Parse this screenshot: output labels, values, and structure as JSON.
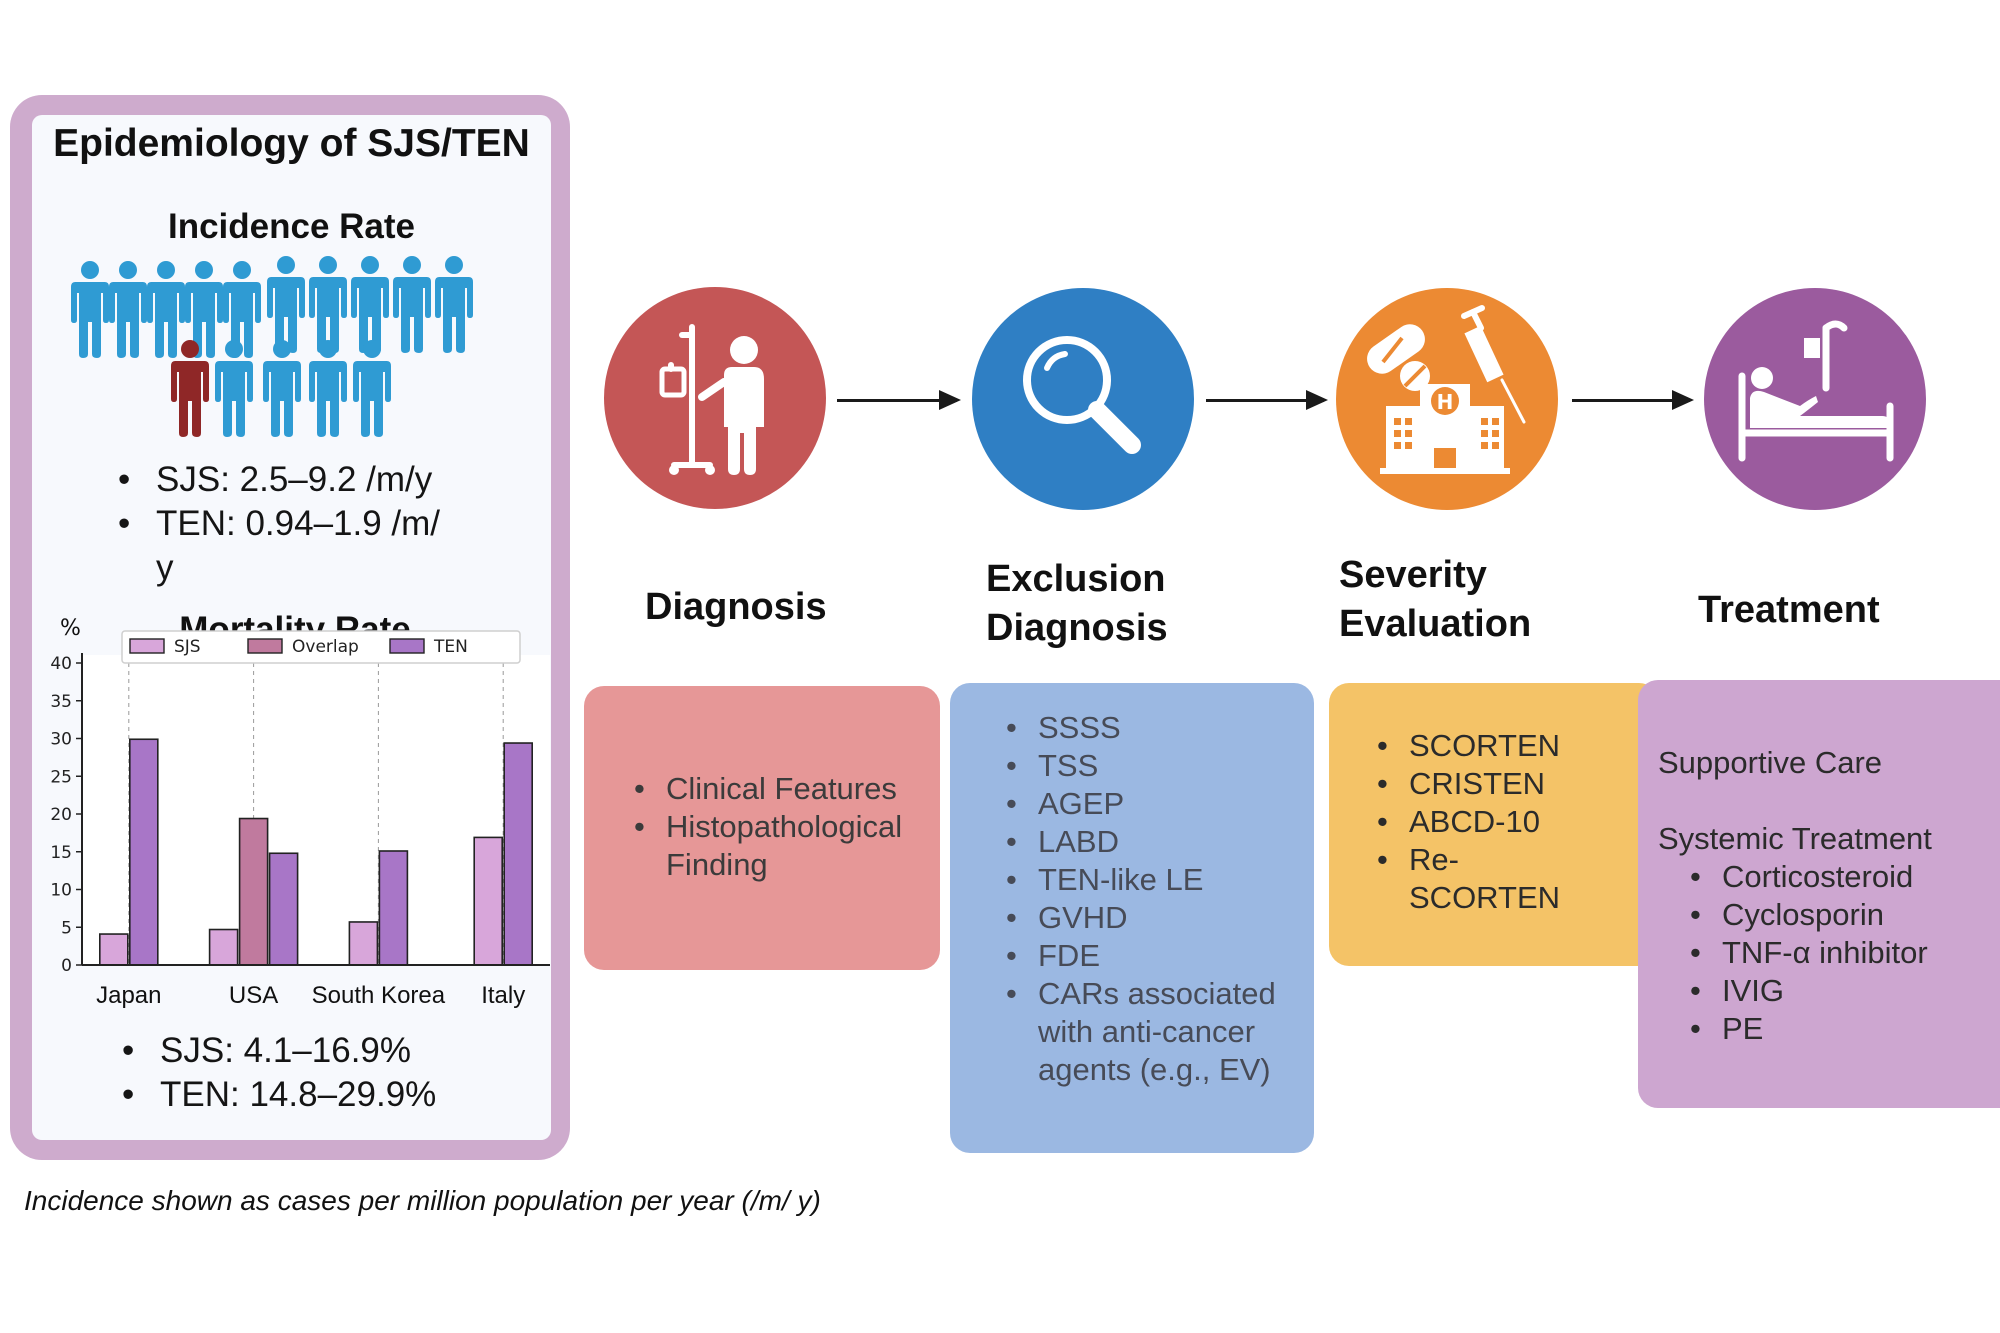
{
  "epidemiology": {
    "title": "Epidemiology of SJS/TEN",
    "incidence_heading": "Incidence Rate",
    "incidence_bullets": [
      "SJS: 2.5–9.2 /m/y",
      "TEN: 0.94–1.9 /m/ y"
    ],
    "mortality_heading": "Mortality Rate",
    "mortality_bullets": [
      "SJS: 4.1–16.9%",
      "TEN: 14.8–29.9%"
    ],
    "people_icon_colors": {
      "population": "#2f9bd3",
      "case": "#8f2727"
    }
  },
  "chart_data": {
    "type": "bar",
    "ylabel": "%",
    "ylim": [
      0,
      40
    ],
    "yticks": [
      0,
      5,
      10,
      15,
      20,
      25,
      30,
      35,
      40
    ],
    "categories": [
      "Japan",
      "USA",
      "South Korea",
      "Italy"
    ],
    "legend_position": "top",
    "grid": "vertical dashed at categories",
    "series": [
      {
        "name": "SJS",
        "color": "#d8a6da",
        "values": [
          4.1,
          4.7,
          5.7,
          16.9
        ]
      },
      {
        "name": "Overlap",
        "color": "#c07a9e",
        "values": [
          null,
          19.4,
          null,
          null
        ]
      },
      {
        "name": "TEN",
        "color": "#a876c7",
        "values": [
          29.9,
          14.8,
          15.1,
          29.4
        ]
      }
    ]
  },
  "steps": [
    {
      "title": [
        "Diagnosis"
      ],
      "icon": "iv-patient-icon",
      "circle_color": "#c45656",
      "card_color": "#e69797",
      "items": [
        "Clinical Features",
        "Histopathological Finding"
      ]
    },
    {
      "title": [
        "Exclusion",
        "Diagnosis"
      ],
      "icon": "magnifier-icon",
      "circle_color": "#2f7fc4",
      "card_color": "#9bb8e2",
      "items": [
        "SSSS",
        "TSS",
        "AGEP",
        "LABD",
        "TEN-like LE",
        "GVHD",
        "FDE",
        "CARs associated with anti-cancer agents (e.g., EV)"
      ]
    },
    {
      "title": [
        "Severity",
        "Evaluation"
      ],
      "icon": "hospital-drugs-icon",
      "circle_color": "#ec8a33",
      "card_color": "#f4c367",
      "items": [
        "SCORTEN",
        "CRISTEN",
        "ABCD-10",
        "Re- SCORTEN"
      ]
    },
    {
      "title": [
        "Treatment"
      ],
      "icon": "hospital-bed-icon",
      "circle_color": "#9b5b9e",
      "card_color": "#cda6d0",
      "heading1": "Supportive Care",
      "heading2": "Systemic Treatment",
      "items": [
        "Corticosteroid",
        "Cyclosporin",
        "TNF-α inhibitor",
        "IVIG",
        "PE"
      ]
    }
  ],
  "footnote": "Incidence shown as cases per million population per year (/m/ y)"
}
